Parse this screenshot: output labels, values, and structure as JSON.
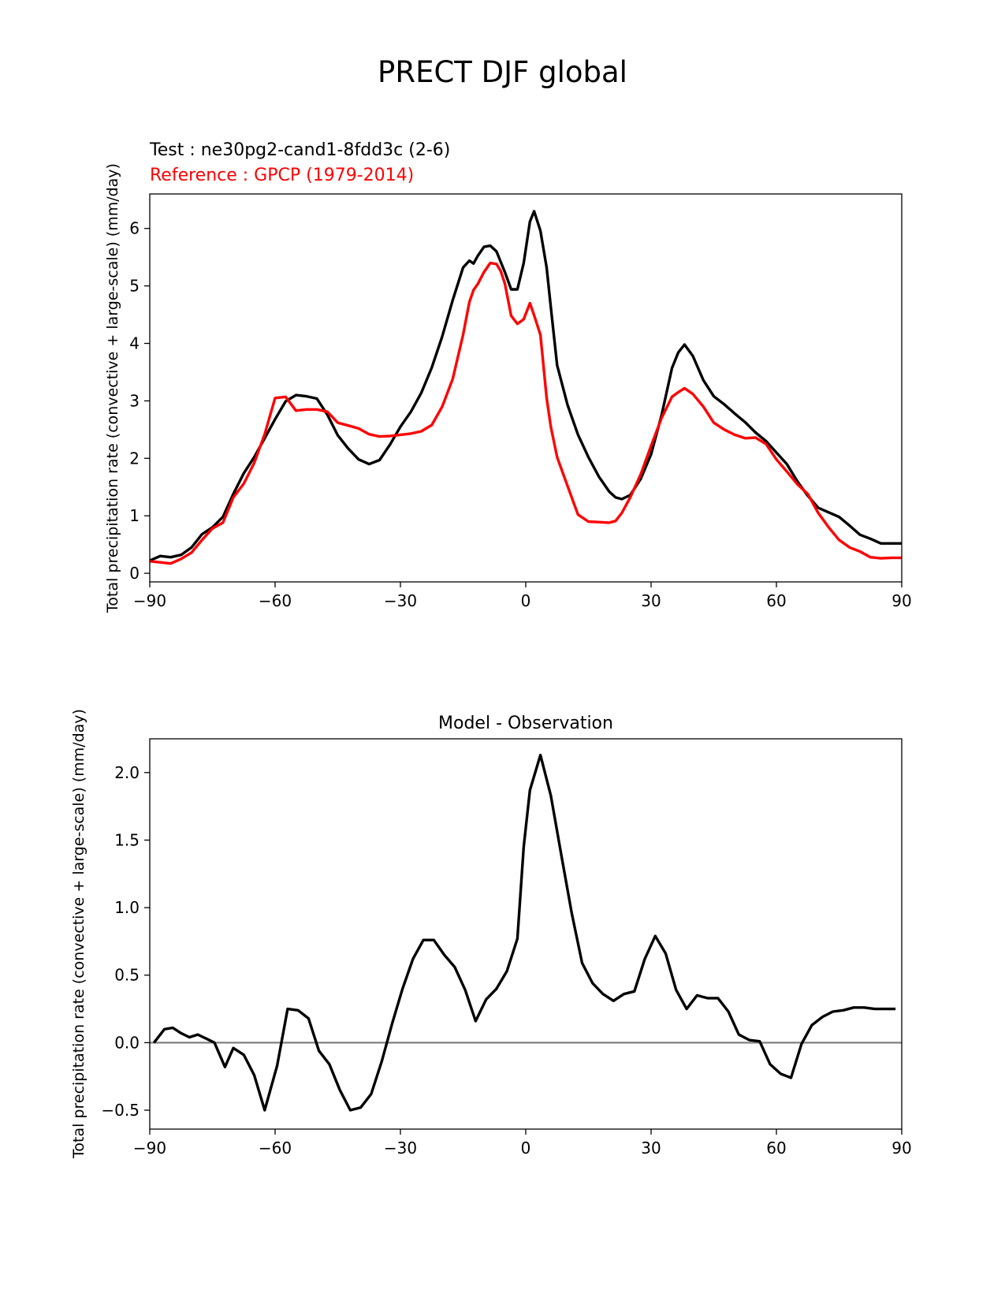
{
  "figure_title": "PRECT DJF global",
  "top_labels": {
    "test": "Test : ne30pg2-cand1-8fdd3c (2-6)",
    "reference": "Reference : GPCP (1979-2014)"
  },
  "colors": {
    "test": "#000000",
    "reference": "#ff0000",
    "zero_line": "#808080"
  },
  "chart_data": [
    {
      "type": "line",
      "ylabel": "Total precipitation rate (convective + large-scale) (mm/day)",
      "xlim": [
        -90,
        90
      ],
      "ylim": [
        -0.15,
        6.6
      ],
      "xticks": [
        -90,
        -60,
        -30,
        0,
        30,
        60,
        90
      ],
      "xtick_labels": [
        "−90",
        "−60",
        "−30",
        "0",
        "30",
        "60",
        "90"
      ],
      "yticks": [
        0,
        1,
        2,
        3,
        4,
        5,
        6
      ],
      "ytick_labels": [
        "0",
        "1",
        "2",
        "3",
        "4",
        "5",
        "6"
      ],
      "series": [
        {
          "name": "Test : ne30pg2-cand1-8fdd3c (2-6)",
          "color": "#000000",
          "x": [
            -90,
            -87.5,
            -85,
            -82.5,
            -80,
            -77.5,
            -75,
            -72.5,
            -70,
            -67.5,
            -65,
            -62.5,
            -60,
            -57.5,
            -55,
            -52.5,
            -50,
            -47.5,
            -45,
            -42.5,
            -40,
            -37.5,
            -35,
            -32.5,
            -30,
            -27.5,
            -25,
            -22.5,
            -20,
            -17.5,
            -15,
            -13.5,
            -12.5,
            -11.5,
            -10,
            -8.5,
            -7,
            -6,
            -5,
            -3.5,
            -2,
            -0.5,
            1,
            2,
            3.5,
            5,
            6,
            7.5,
            10,
            12.5,
            15,
            17.5,
            20,
            21.5,
            23,
            25,
            27.5,
            30,
            32.5,
            35,
            36.5,
            38,
            40,
            42.5,
            45,
            47.5,
            50,
            52.5,
            55,
            57.5,
            60,
            62.5,
            65,
            67.5,
            70,
            72.5,
            75,
            77.5,
            80,
            82.5,
            85,
            87.5,
            90
          ],
          "values": [
            0.22,
            0.3,
            0.28,
            0.32,
            0.45,
            0.68,
            0.8,
            0.98,
            1.38,
            1.74,
            2.02,
            2.35,
            2.68,
            2.99,
            3.1,
            3.08,
            3.04,
            2.76,
            2.4,
            2.17,
            1.98,
            1.9,
            1.97,
            2.24,
            2.55,
            2.81,
            3.14,
            3.58,
            4.12,
            4.75,
            5.32,
            5.44,
            5.39,
            5.52,
            5.68,
            5.7,
            5.6,
            5.42,
            5.24,
            4.94,
            4.94,
            5.4,
            6.12,
            6.3,
            5.96,
            5.32,
            4.63,
            3.62,
            2.93,
            2.41,
            2.02,
            1.68,
            1.42,
            1.32,
            1.29,
            1.36,
            1.64,
            2.07,
            2.75,
            3.57,
            3.84,
            3.98,
            3.78,
            3.36,
            3.08,
            2.94,
            2.78,
            2.63,
            2.45,
            2.3,
            2.1,
            1.9,
            1.6,
            1.35,
            1.14,
            1.06,
            0.98,
            0.83,
            0.67,
            0.6,
            0.52,
            0.52,
            0.52
          ]
        },
        {
          "name": "Reference : GPCP (1979-2014)",
          "color": "#ff0000",
          "x": [
            -90,
            -87.5,
            -85,
            -82.5,
            -80,
            -77.5,
            -75,
            -72.5,
            -70,
            -67.5,
            -65,
            -62.5,
            -60,
            -57.5,
            -55,
            -52.5,
            -50,
            -47.5,
            -45,
            -42.5,
            -40,
            -37.5,
            -35,
            -32.5,
            -30,
            -27.5,
            -25,
            -22.5,
            -20,
            -17.5,
            -15,
            -13.5,
            -12.5,
            -11.5,
            -10,
            -8.5,
            -7,
            -6,
            -5,
            -3.5,
            -2,
            -0.5,
            1,
            2,
            3.5,
            5,
            6,
            7.5,
            10,
            12.5,
            15,
            17.5,
            20,
            21.5,
            23,
            25,
            27.5,
            30,
            32.5,
            35,
            36.5,
            38,
            40,
            42.5,
            45,
            47.5,
            50,
            52.5,
            55,
            57.5,
            60,
            62.5,
            65,
            67.5,
            70,
            72.5,
            75,
            77.5,
            80,
            82.5,
            85,
            87.5,
            90
          ],
          "values": [
            0.21,
            0.19,
            0.17,
            0.25,
            0.36,
            0.58,
            0.78,
            0.88,
            1.32,
            1.56,
            1.92,
            2.42,
            3.05,
            3.07,
            2.83,
            2.85,
            2.85,
            2.81,
            2.62,
            2.57,
            2.52,
            2.42,
            2.38,
            2.39,
            2.41,
            2.43,
            2.47,
            2.58,
            2.9,
            3.38,
            4.15,
            4.72,
            4.93,
            5.03,
            5.24,
            5.4,
            5.38,
            5.26,
            5.04,
            4.48,
            4.34,
            4.42,
            4.7,
            4.49,
            4.15,
            3.05,
            2.55,
            2.02,
            1.52,
            1.02,
            0.9,
            0.89,
            0.88,
            0.91,
            1.05,
            1.32,
            1.72,
            2.22,
            2.7,
            3.07,
            3.15,
            3.22,
            3.12,
            2.9,
            2.62,
            2.5,
            2.41,
            2.35,
            2.36,
            2.25,
            1.98,
            1.77,
            1.55,
            1.38,
            1.05,
            0.8,
            0.58,
            0.45,
            0.38,
            0.28,
            0.26,
            0.27,
            0.27
          ]
        }
      ]
    },
    {
      "type": "line",
      "title": "Model - Observation",
      "ylabel": "Total precipitation rate (convective + large-scale) (mm/day)",
      "xlim": [
        -90,
        90
      ],
      "ylim": [
        -0.64,
        2.25
      ],
      "xticks": [
        -90,
        -60,
        -30,
        0,
        30,
        60,
        90
      ],
      "xtick_labels": [
        "−90",
        "−60",
        "−30",
        "0",
        "30",
        "60",
        "90"
      ],
      "yticks": [
        -0.5,
        0.0,
        0.5,
        1.0,
        1.5,
        2.0
      ],
      "ytick_labels": [
        "−0.5",
        "0.0",
        "0.5",
        "1.0",
        "1.5",
        "2.0"
      ],
      "zero_line": 0,
      "series": [
        {
          "color": "#000000",
          "x": [
            -89,
            -86.5,
            -84.5,
            -82.5,
            -80.5,
            -78.5,
            -76.5,
            -74.5,
            -72,
            -70,
            -67.5,
            -65,
            -62.5,
            -59.5,
            -57,
            -54.5,
            -52,
            -49.5,
            -47,
            -44.5,
            -42,
            -39.5,
            -37,
            -34.5,
            -32,
            -29.5,
            -27,
            -24.5,
            -22,
            -19.5,
            -17,
            -14.5,
            -12,
            -9.5,
            -7,
            -4.5,
            -2,
            -0.5,
            1,
            3.5,
            6,
            8.5,
            11,
            13.5,
            16,
            18.5,
            21,
            23.5,
            26,
            28.5,
            31,
            33.5,
            36,
            38.5,
            41,
            43.5,
            46,
            48.5,
            51,
            53.5,
            56,
            58.5,
            61,
            63.5,
            66,
            68.5,
            71,
            73.5,
            76,
            78.5,
            81,
            83.5,
            86,
            88.5
          ],
          "values": [
            0.0,
            0.1,
            0.11,
            0.07,
            0.04,
            0.06,
            0.03,
            0.0,
            -0.18,
            -0.04,
            -0.09,
            -0.24,
            -0.5,
            -0.17,
            0.25,
            0.24,
            0.18,
            -0.06,
            -0.16,
            -0.35,
            -0.5,
            -0.48,
            -0.38,
            -0.14,
            0.14,
            0.4,
            0.62,
            0.76,
            0.76,
            0.65,
            0.56,
            0.39,
            0.16,
            0.32,
            0.4,
            0.53,
            0.77,
            1.45,
            1.87,
            2.13,
            1.83,
            1.39,
            0.96,
            0.59,
            0.44,
            0.36,
            0.31,
            0.36,
            0.38,
            0.62,
            0.79,
            0.66,
            0.39,
            0.25,
            0.35,
            0.33,
            0.33,
            0.23,
            0.06,
            0.02,
            0.01,
            -0.16,
            -0.23,
            -0.26,
            -0.01,
            0.13,
            0.19,
            0.23,
            0.24,
            0.26,
            0.26,
            0.25,
            0.25,
            0.25
          ]
        }
      ]
    }
  ]
}
